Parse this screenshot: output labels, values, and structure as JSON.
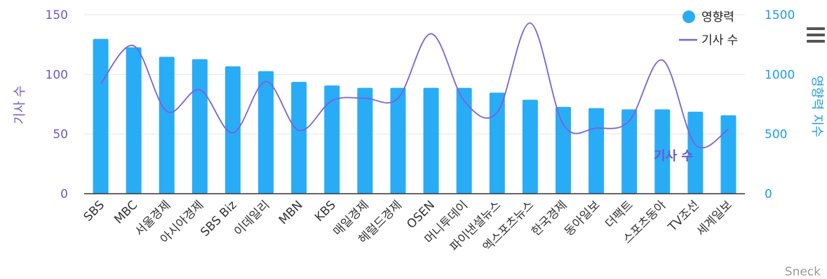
{
  "chart_data": {
    "type": "bar",
    "categories": [
      "SBS",
      "MBC",
      "서울경제",
      "아시아경제",
      "SBS Biz",
      "이데일리",
      "MBN",
      "KBS",
      "매일경제",
      "헤럴드경제",
      "OSEN",
      "머니투데이",
      "파이낸셜뉴스",
      "엑스포츠뉴스",
      "한국경제",
      "동아일보",
      "더팩트",
      "스포츠동아",
      "TV조선",
      "세계일보"
    ],
    "series": [
      {
        "name": "영향력",
        "type": "bar",
        "axis": "right",
        "color": "#29acf6",
        "values": [
          1297,
          1227,
          1147,
          1127,
          1067,
          1027,
          937,
          907,
          887,
          887,
          887,
          887,
          847,
          787,
          727,
          717,
          707,
          707,
          687,
          657
        ]
      },
      {
        "name": "기사 수",
        "type": "line",
        "axis": "left",
        "color": "#7b61d9",
        "values": [
          92,
          124,
          69,
          87,
          51,
          94,
          53,
          78,
          80,
          80,
          134,
          78,
          68,
          143,
          58,
          55,
          61,
          112,
          41,
          54
        ]
      }
    ],
    "left_axis": {
      "title": "기사 수",
      "ylim": [
        0,
        150
      ],
      "ticks": [
        "0",
        "50",
        "100",
        "150"
      ]
    },
    "right_axis": {
      "title": "영향력 지수",
      "ylim": [
        0,
        1500
      ],
      "ticks": [
        "0",
        "500",
        "1000",
        "1500"
      ]
    },
    "legend": {
      "position": "top-right",
      "items": [
        "영향력",
        "기사 수"
      ]
    },
    "line_label": "기사 수",
    "grid": true,
    "credit": "Sneck",
    "menu_icon": "hamburger-menu-icon"
  }
}
